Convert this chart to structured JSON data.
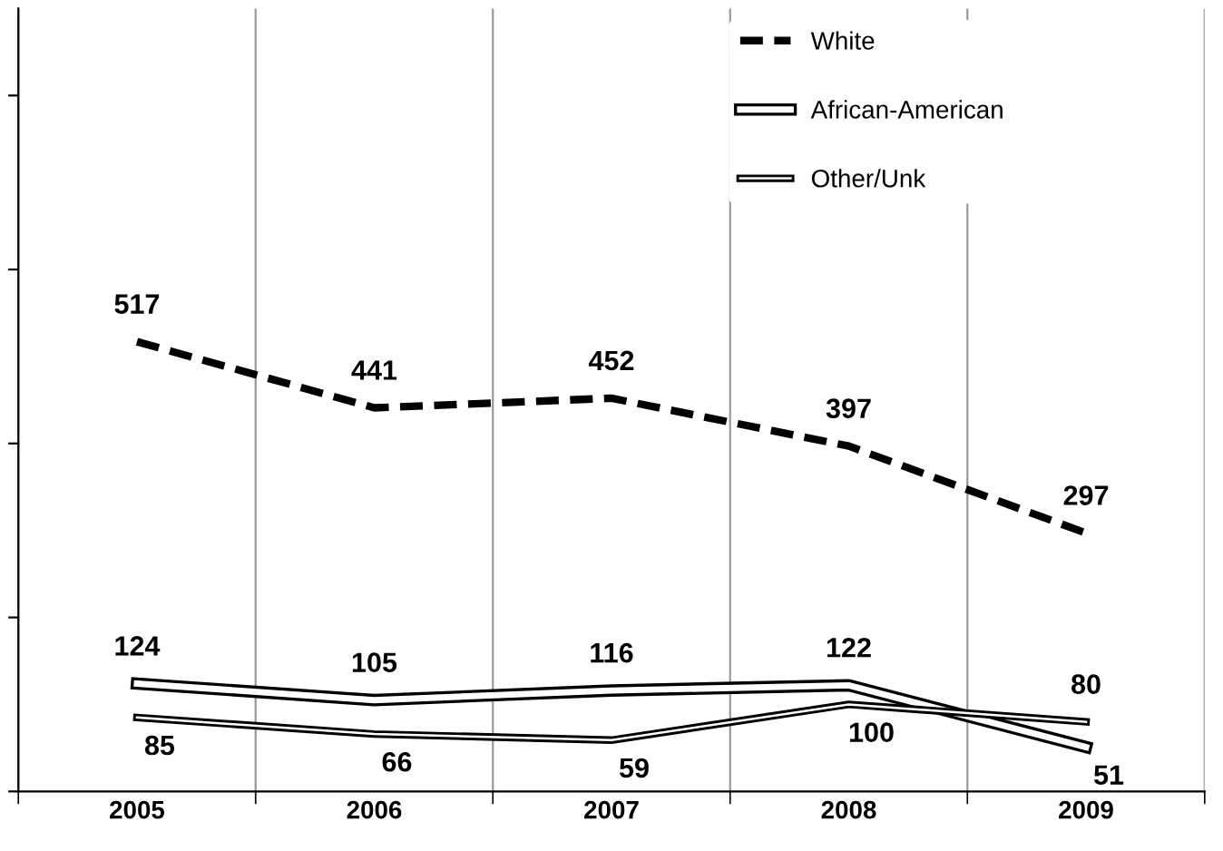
{
  "chart_data": {
    "type": "line",
    "categories": [
      "2005",
      "2006",
      "2007",
      "2008",
      "2009"
    ],
    "series": [
      {
        "name": "White",
        "color": "#000000",
        "values": [
          517,
          441,
          452,
          397,
          297
        ],
        "line_style": "dashed"
      },
      {
        "name": "African-American",
        "color": "#ffffff",
        "values": [
          124,
          105,
          116,
          122,
          51
        ],
        "line_style": "solid"
      },
      {
        "name": "Other/Unk",
        "color": "#000000",
        "values": [
          85,
          66,
          59,
          100,
          80
        ],
        "line_style": "solid"
      }
    ],
    "ylim": [
      0,
      900
    ],
    "yticks": [
      {
        "value": 0,
        "label": null
      },
      {
        "value": 200,
        "label": null
      },
      {
        "value": 400,
        "label": null
      },
      {
        "value": 600,
        "label": null
      },
      {
        "value": 800,
        "label": null
      }
    ],
    "tick_labels": "x",
    "grid": "x",
    "legend": "top right",
    "data_labels": true,
    "marker": "none"
  }
}
